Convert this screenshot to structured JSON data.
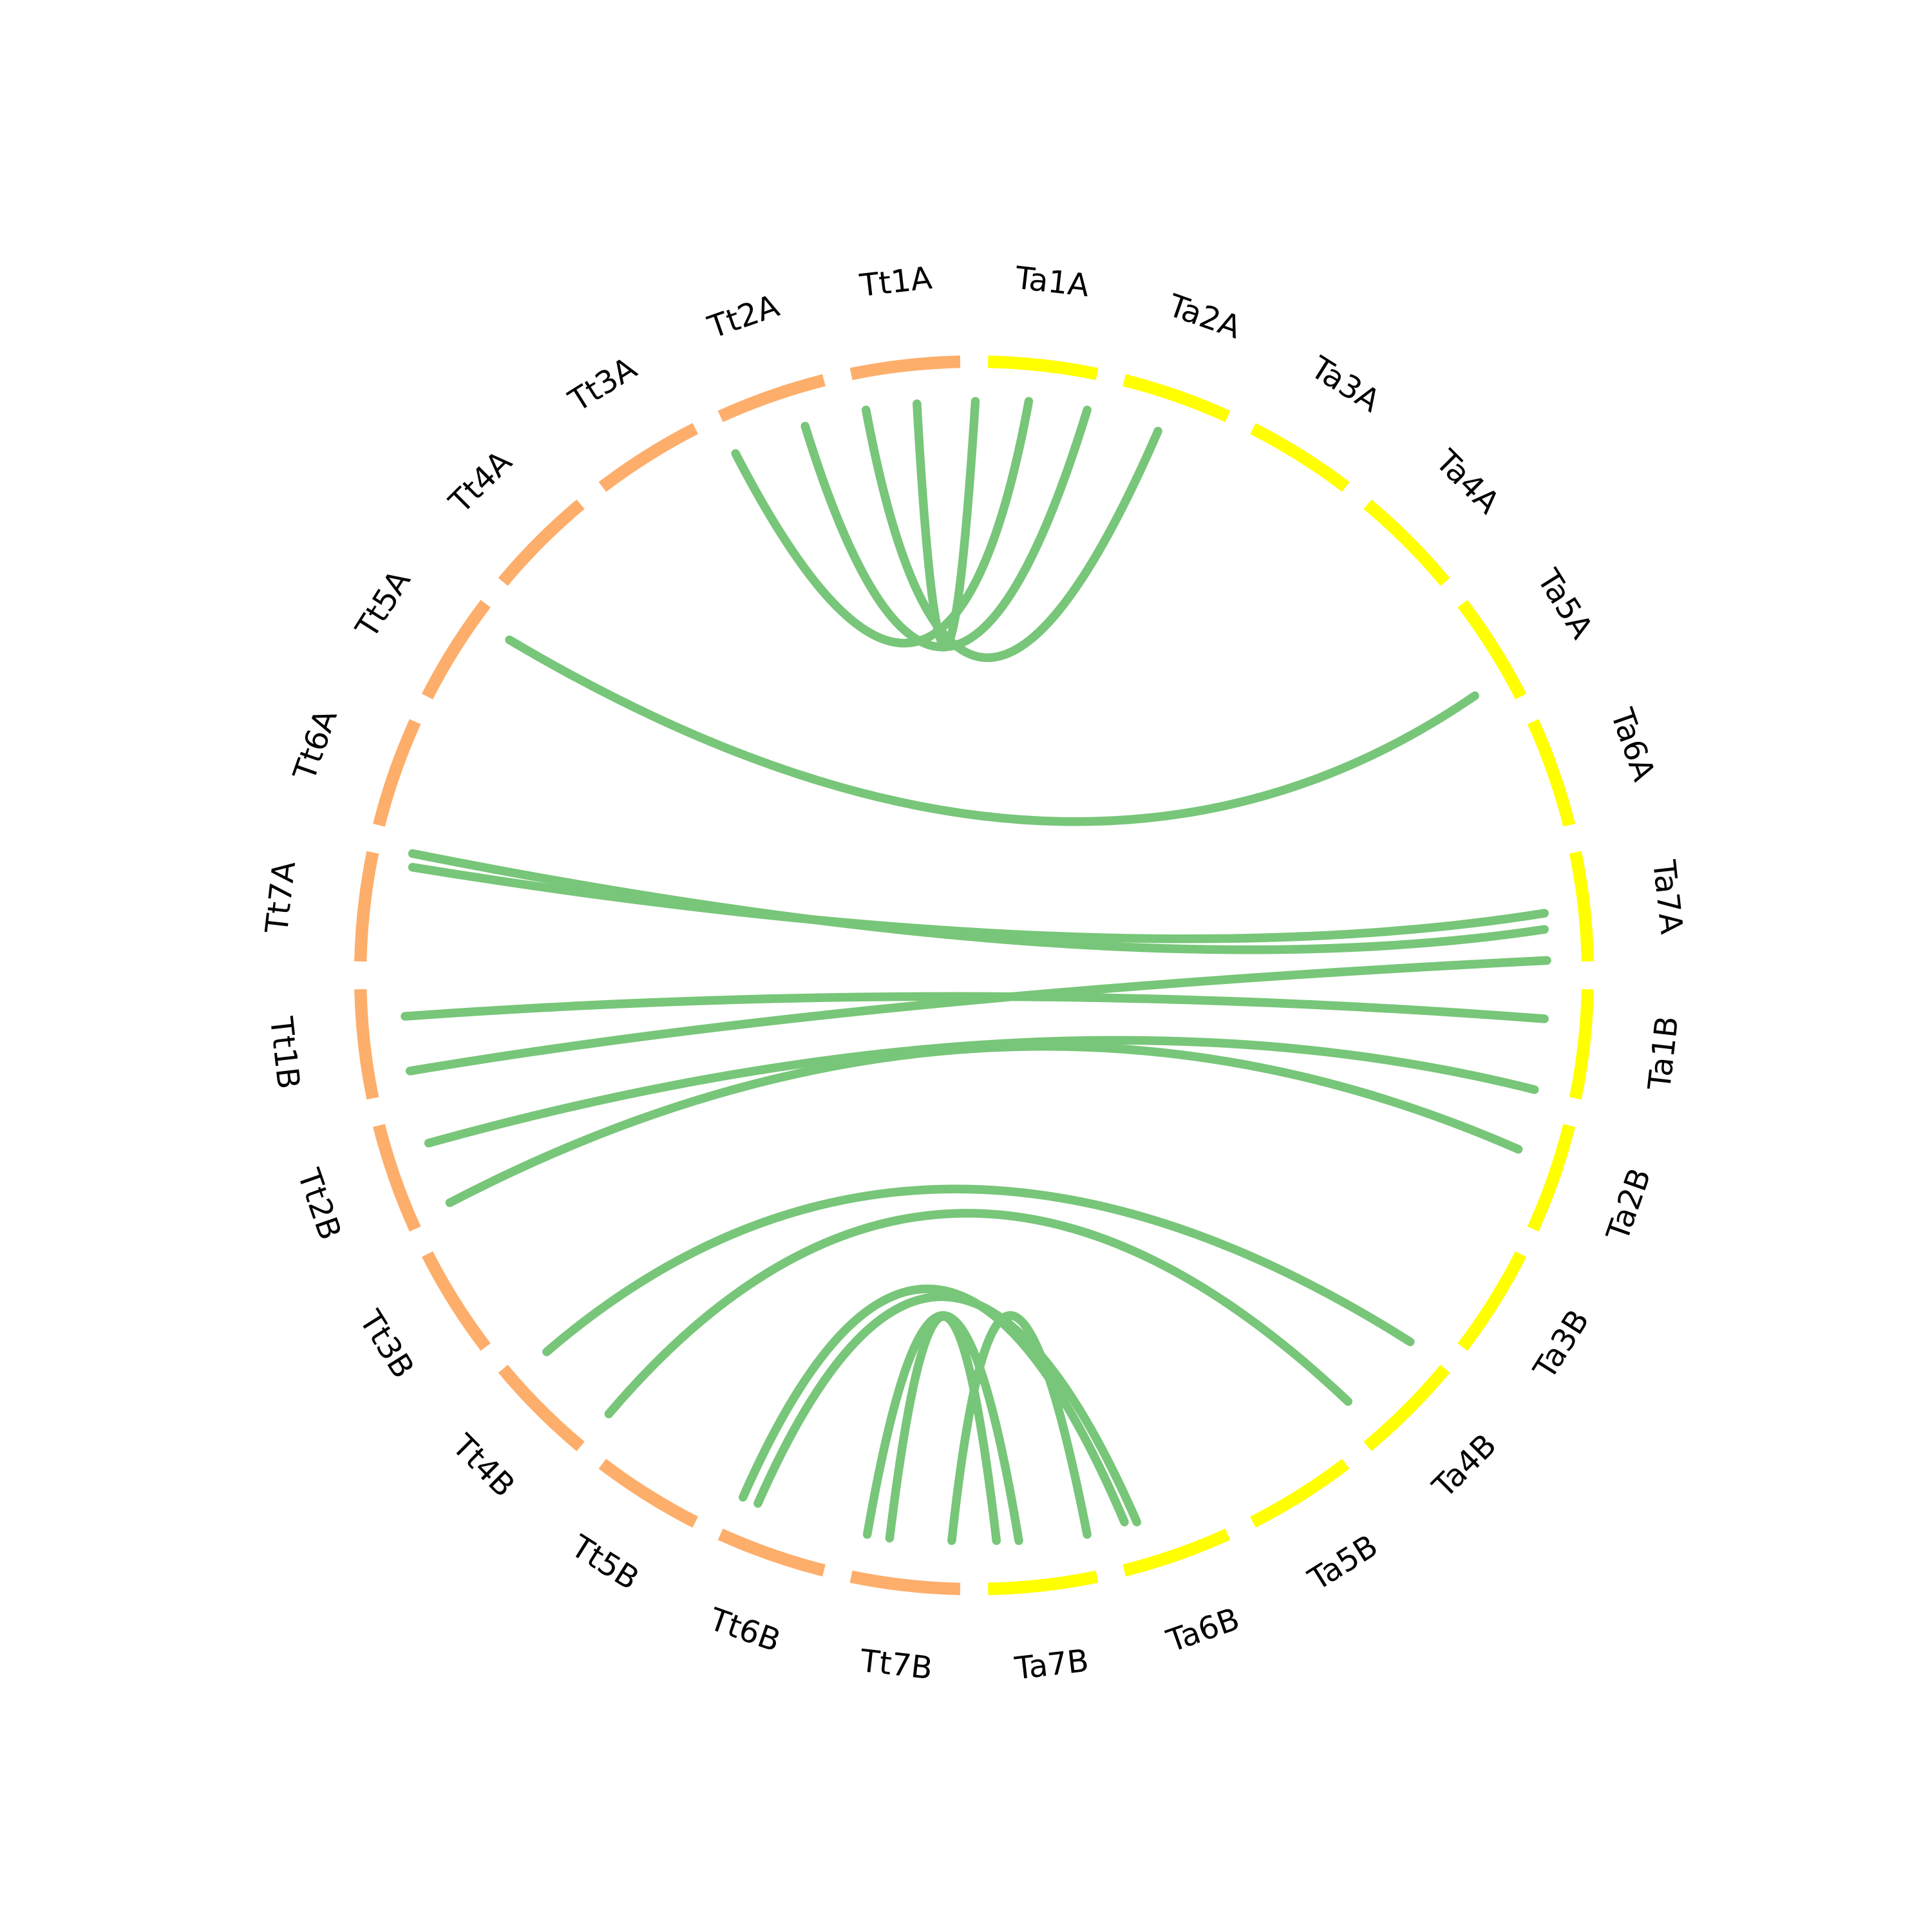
{
  "segments": [
    {
      "label": "Ta1A",
      "color": "#ffff00"
    },
    {
      "label": "Ta2A",
      "color": "#ffff00"
    },
    {
      "label": "Ta3A",
      "color": "#ffff00"
    },
    {
      "label": "Ta4A",
      "color": "#ffff00"
    },
    {
      "label": "Ta5A",
      "color": "#ffff00"
    },
    {
      "label": "Ta6A",
      "color": "#ffff00"
    },
    {
      "label": "Ta7A",
      "color": "#ffff00"
    },
    {
      "label": "Ta1B",
      "color": "#ffff00"
    },
    {
      "label": "Ta2B",
      "color": "#ffff00"
    },
    {
      "label": "Ta3B",
      "color": "#ffff00"
    },
    {
      "label": "Ta4B",
      "color": "#ffff00"
    },
    {
      "label": "Ta5B",
      "color": "#ffff00"
    },
    {
      "label": "Ta6B",
      "color": "#ffff00"
    },
    {
      "label": "Ta7B",
      "color": "#ffff00"
    },
    {
      "label": "Tt7B",
      "color": "#fdae6b"
    },
    {
      "label": "Tt6B",
      "color": "#fdae6b"
    },
    {
      "label": "Tt5B",
      "color": "#fdae6b"
    },
    {
      "label": "Tt4B",
      "color": "#fdae6b"
    },
    {
      "label": "Tt3B",
      "color": "#fdae6b"
    },
    {
      "label": "Tt2B",
      "color": "#fdae6b"
    },
    {
      "label": "Tt1B",
      "color": "#fdae6b"
    },
    {
      "label": "Tt7A",
      "color": "#fdae6b"
    },
    {
      "label": "Tt6A",
      "color": "#fdae6b"
    },
    {
      "label": "Tt5A",
      "color": "#fdae6b"
    },
    {
      "label": "Tt4A",
      "color": "#fdae6b"
    },
    {
      "label": "Tt3A",
      "color": "#fdae6b"
    },
    {
      "label": "Tt2A",
      "color": "#fdae6b"
    },
    {
      "label": "Tt1A",
      "color": "#fdae6b"
    }
  ]
}
